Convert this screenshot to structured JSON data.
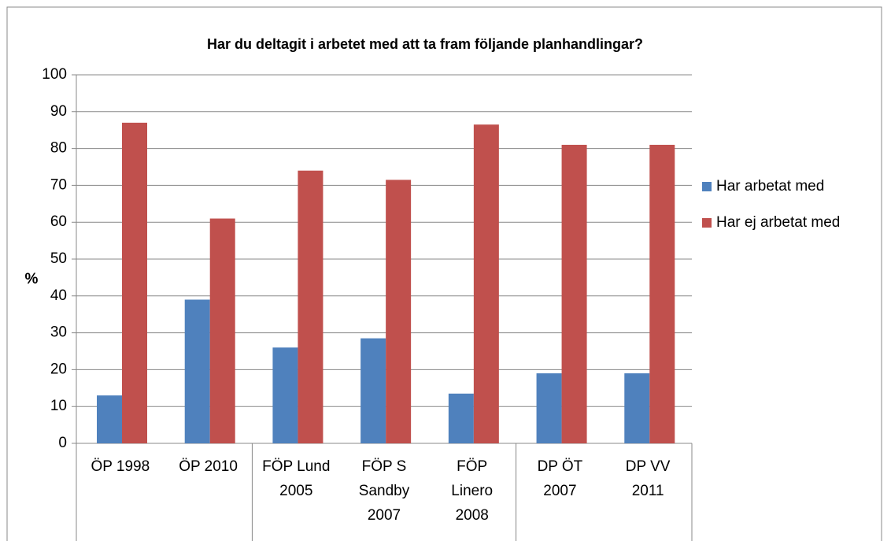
{
  "chart_data": {
    "type": "bar",
    "title": "Har du deltagit i arbetet med att ta fram följande planhandlingar?",
    "y_label": "%",
    "categories": [
      [
        "ÖP 1998"
      ],
      [
        "ÖP 2010"
      ],
      [
        "FÖP Lund",
        "2005"
      ],
      [
        "FÖP S",
        "Sandby",
        "2007"
      ],
      [
        "FÖP",
        "Linero",
        "2008"
      ],
      [
        "DP ÖT",
        "2007"
      ],
      [
        "DP VV",
        "2011"
      ]
    ],
    "series": [
      {
        "name": "Har arbetat med",
        "color": "#4f81bd",
        "values": [
          13,
          39,
          26,
          28.5,
          13.5,
          19,
          19
        ]
      },
      {
        "name": "Har ej arbetat med",
        "color": "#c0504d",
        "values": [
          87,
          61,
          74,
          71.5,
          86.5,
          81,
          81
        ]
      }
    ],
    "ylim": [
      0,
      100
    ],
    "yticks": [
      0,
      10,
      20,
      30,
      40,
      50,
      60,
      70,
      80,
      90,
      100
    ],
    "grid": true,
    "legend": "right"
  }
}
